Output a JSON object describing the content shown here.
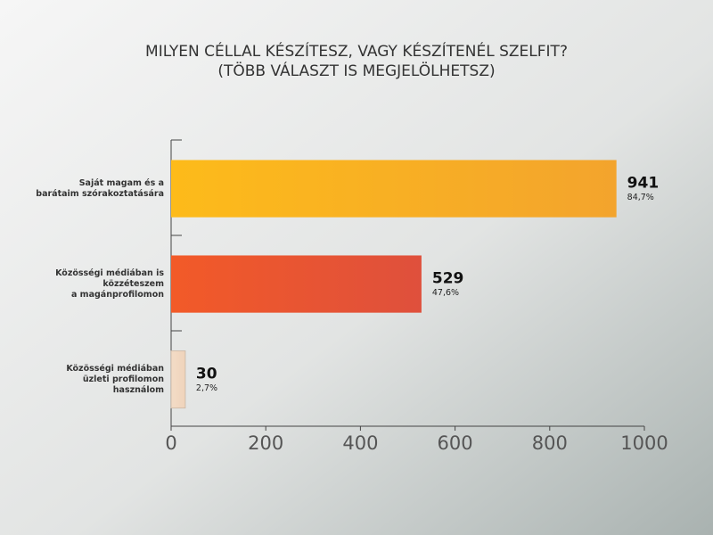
{
  "chart_data": {
    "type": "bar",
    "orientation": "horizontal",
    "title": "MILYEN CÉLLAL KÉSZÍTESZ, VAGY KÉSZÍTENÉL SZELFIT?",
    "subtitle": "(TÖBB VÁLASZT IS MEGJELÖLHETSZ)",
    "categories": [
      [
        "Saját magam és a",
        "barátaim szórakoztatására"
      ],
      [
        "Közösségi médiában is",
        "közzéteszem",
        "a magánprofilomon"
      ],
      [
        "Közösségi médiában",
        "üzleti profilomon",
        "használom"
      ]
    ],
    "values": [
      941,
      529,
      30
    ],
    "share_labels": [
      "84,7%",
      "47,6%",
      "2,7%"
    ],
    "colors": [
      [
        "#fdbb1a",
        "#f3a42d"
      ],
      [
        "#f25a28",
        "#df503c"
      ],
      [
        "#f3dcc6",
        "#efd3bb"
      ]
    ],
    "xlim": [
      0,
      1000
    ],
    "xticks": [
      0,
      200,
      400,
      600,
      800,
      1000
    ],
    "grid": false
  }
}
